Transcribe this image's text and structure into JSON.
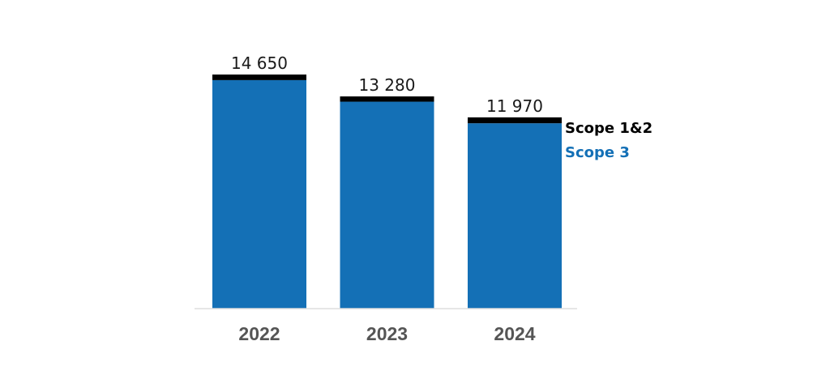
{
  "chart_data": {
    "type": "bar",
    "stacked": true,
    "categories": [
      "2022",
      "2023",
      "2024"
    ],
    "series": [
      {
        "name": "Scope 3",
        "color": "#1470b6",
        "values": [
          14300,
          12950,
          11600
        ]
      },
      {
        "name": "Scope 1&2",
        "color": "#000000",
        "values": [
          350,
          330,
          370
        ]
      }
    ],
    "totals": [
      14650,
      13280,
      11970
    ],
    "total_labels": [
      "14 650",
      "13 280",
      "11 970"
    ],
    "legend": {
      "placement": "right",
      "items": [
        {
          "label": "Scope 1&2",
          "color": "#000000"
        },
        {
          "label": "Scope 3",
          "color": "#1470b6"
        }
      ]
    },
    "title": "",
    "xlabel": "",
    "ylabel": "",
    "ylim": [
      0,
      14650
    ],
    "grid": false,
    "axis_color": "#dddddd",
    "tick_color": "#555555"
  }
}
